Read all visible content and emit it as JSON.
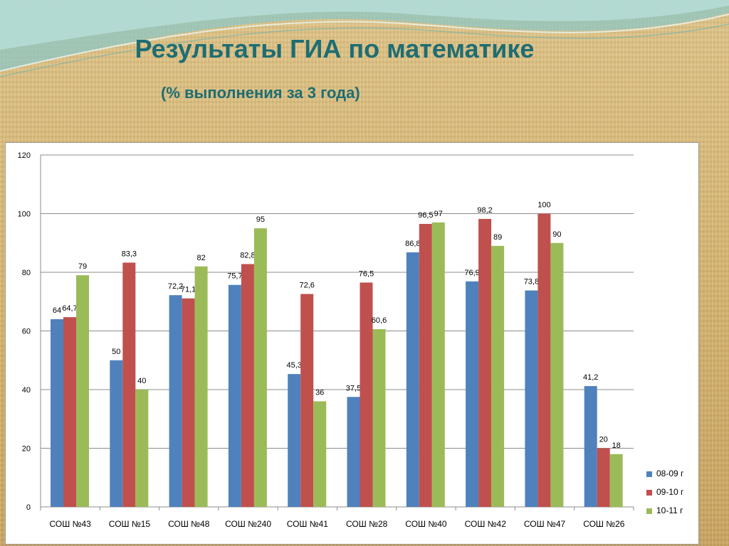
{
  "slide": {
    "title": "Результаты ГИА по математике",
    "subtitle": "(% выполнения за 3 года)"
  },
  "chart_data": {
    "type": "bar",
    "categories": [
      "СОШ №43",
      "СОШ №15",
      "СОШ №48",
      "СОШ №240",
      "СОШ №41",
      "СОШ №28",
      "СОШ №40",
      "СОШ №42",
      "СОШ №47",
      "СОШ №26"
    ],
    "series": [
      {
        "name": "08-09 г",
        "color": "#4f81bd",
        "values": [
          64,
          50,
          72.2,
          75.7,
          45.3,
          37.5,
          86.8,
          76.9,
          73.8,
          41.2
        ]
      },
      {
        "name": "09-10 г",
        "color": "#c0504d",
        "values": [
          64.7,
          83.3,
          71.1,
          82.8,
          72.6,
          76.5,
          96.5,
          98.2,
          100,
          20
        ]
      },
      {
        "name": "10-11 г",
        "color": "#9bbb59",
        "values": [
          79,
          40,
          82,
          95,
          36,
          60.6,
          97,
          89,
          90,
          18
        ]
      }
    ],
    "ylim": [
      0,
      120
    ],
    "yticks": [
      0,
      20,
      40,
      60,
      80,
      100,
      120
    ],
    "grid": true,
    "legend_position": "bottom-right",
    "xlabel": "",
    "ylabel": ""
  }
}
